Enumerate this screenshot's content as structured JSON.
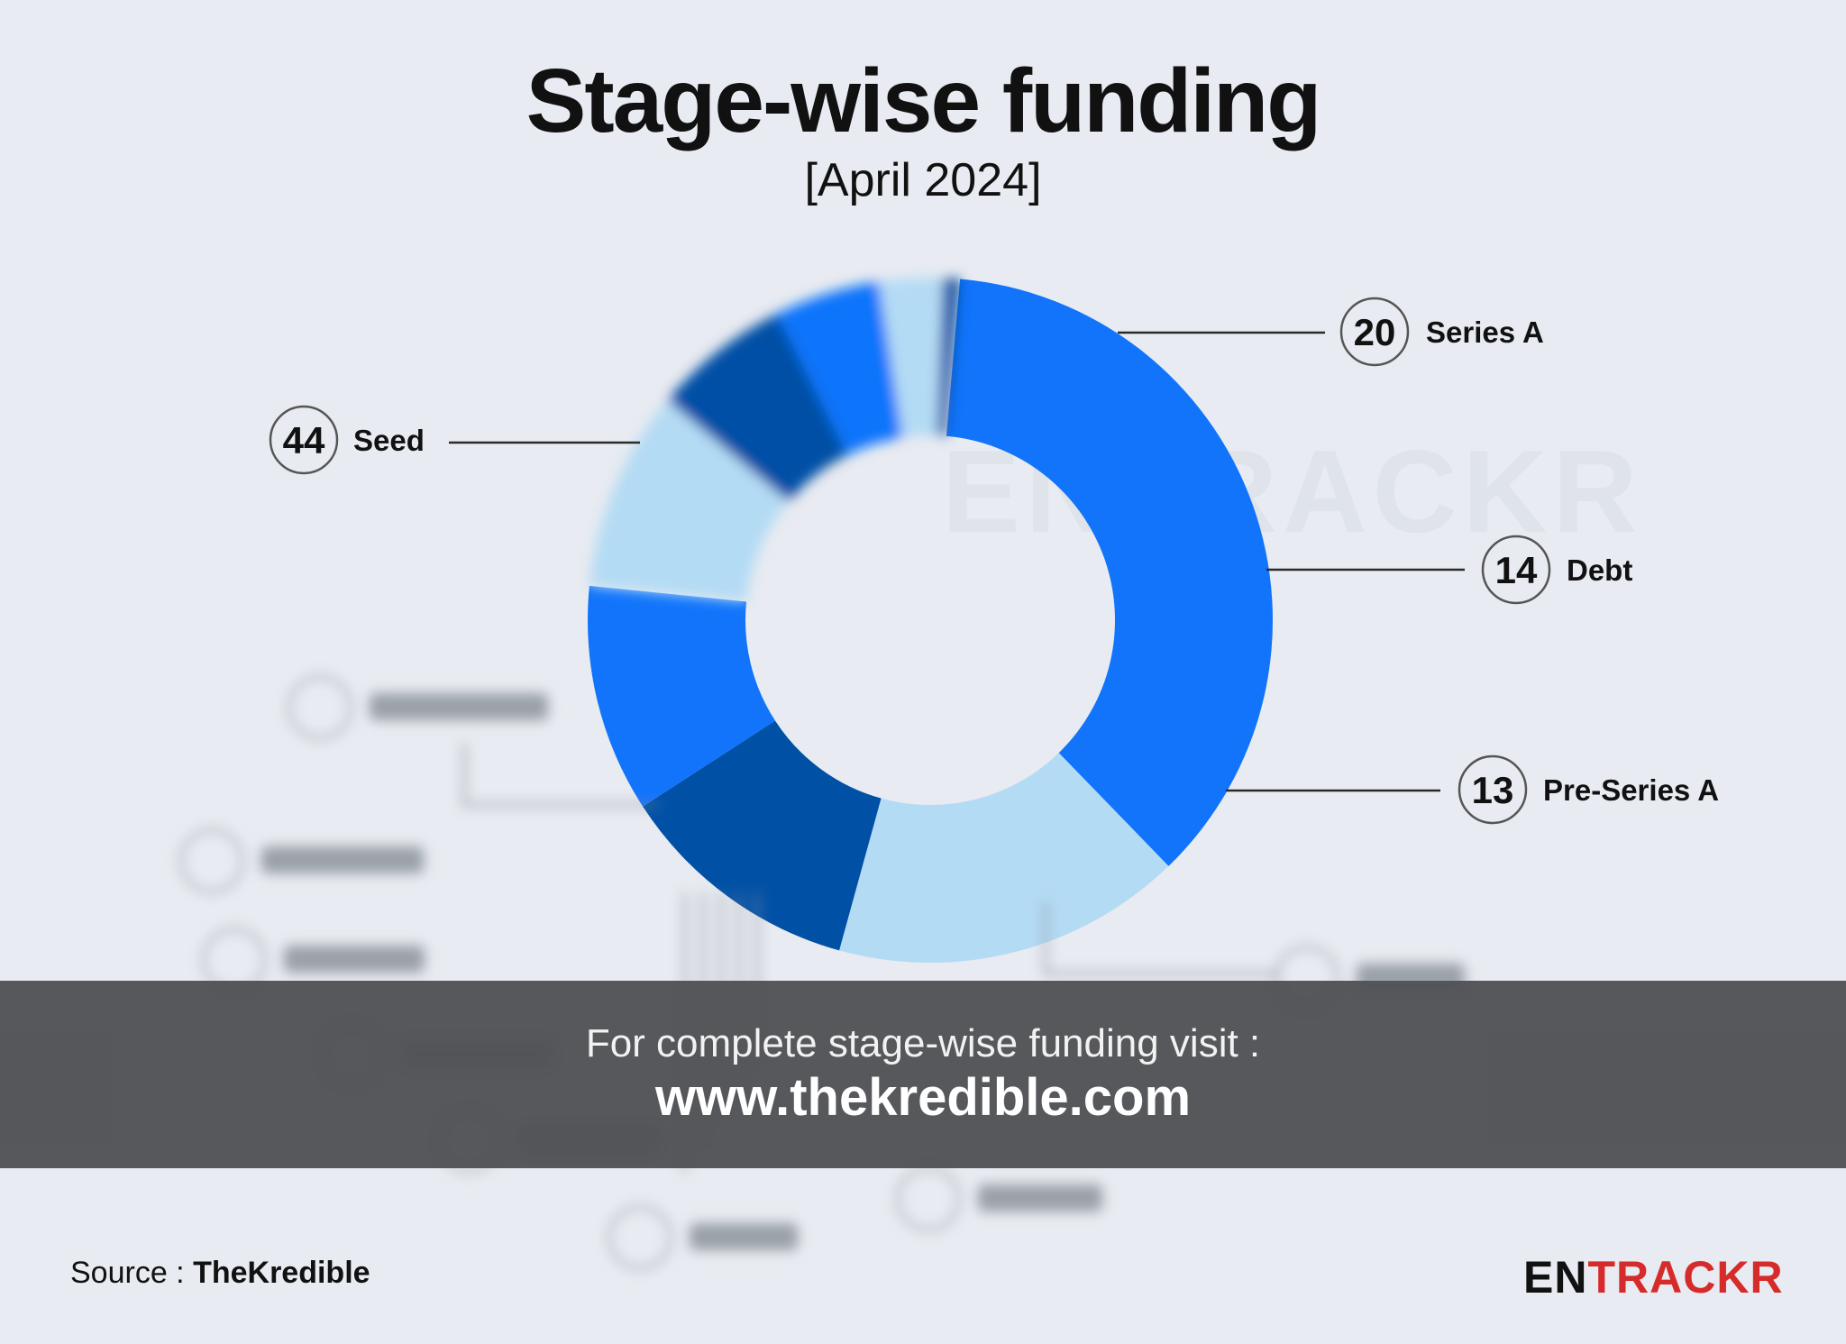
{
  "chart_data": {
    "type": "pie",
    "title": "Stage-wise funding",
    "subtitle": "[April 2024]",
    "slices": [
      {
        "label": "Seed",
        "value": 44,
        "color": "#1174fb",
        "start": 0,
        "end": 0.3636
      },
      {
        "label": "Series A",
        "value": 20,
        "color": "#b4dbf4",
        "start": 0.3636,
        "end": 0.5289
      },
      {
        "label": "Debt",
        "value": 14,
        "color": "#0050a6",
        "start": 0.5289,
        "end": 0.6446
      },
      {
        "label": "Pre-Series A",
        "value": 13,
        "color": "#1174fb",
        "start": 0.6446,
        "end": 0.7521
      }
    ],
    "hidden_slices_colors": [
      "#b4dbf4",
      "#0050a6",
      "#1174fb",
      "#b4dbf4",
      "#0050a6",
      "#1174fb",
      "#b4dbf4",
      "#0050a6"
    ]
  },
  "banner": {
    "line1": "For complete stage-wise funding visit :",
    "line2": "www.thekredible.com"
  },
  "source": {
    "prefix": "Source : ",
    "name": "TheKredible"
  },
  "logo": {
    "part1": "EN",
    "part2": "TRACKR"
  },
  "watermark": "ENTRACKR"
}
